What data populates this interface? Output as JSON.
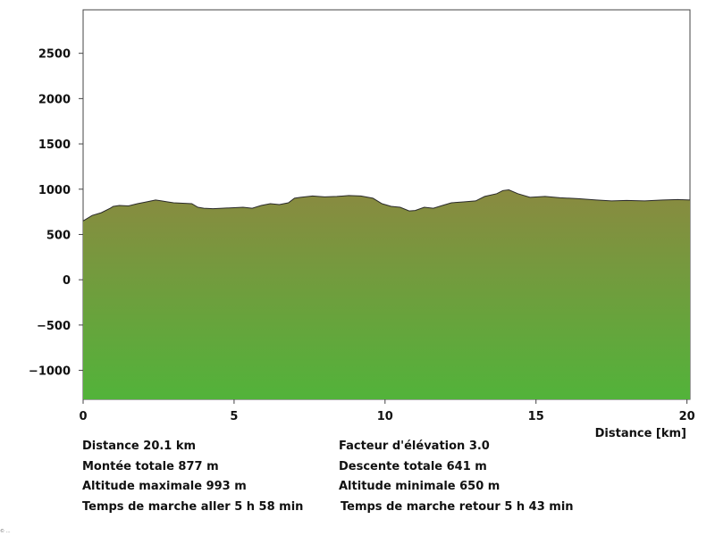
{
  "chart_data": {
    "type": "area",
    "title": "",
    "xlabel": "Distance [km]",
    "ylabel": "",
    "xlim": [
      0,
      20.1
    ],
    "ylim": [
      -1320,
      2980
    ],
    "x_ticks": [
      0,
      5,
      10,
      15,
      20
    ],
    "y_ticks": [
      -1000,
      -500,
      0,
      500,
      1000,
      1500,
      2000,
      2500
    ],
    "grid": false,
    "fill_top_color": "#8a8a40",
    "fill_bottom_color": "#52b33a",
    "line_color": "#2a2a2a",
    "x": [
      0,
      0.3,
      0.6,
      0.9,
      1.0,
      1.2,
      1.5,
      1.8,
      2.1,
      2.4,
      2.6,
      2.8,
      3.0,
      3.3,
      3.6,
      3.8,
      4.0,
      4.3,
      4.6,
      5.0,
      5.3,
      5.6,
      5.9,
      6.2,
      6.5,
      6.8,
      7.0,
      7.2,
      7.6,
      8.0,
      8.4,
      8.8,
      9.2,
      9.6,
      9.9,
      10.2,
      10.5,
      10.8,
      11.0,
      11.3,
      11.6,
      11.9,
      12.2,
      12.6,
      13.0,
      13.3,
      13.7,
      13.9,
      14.1,
      14.4,
      14.8,
      15.3,
      15.8,
      16.4,
      17.0,
      17.5,
      18.0,
      18.6,
      19.2,
      19.7,
      20.1
    ],
    "y": [
      650,
      710,
      740,
      790,
      810,
      820,
      815,
      840,
      860,
      880,
      870,
      860,
      850,
      845,
      840,
      800,
      790,
      785,
      790,
      795,
      800,
      790,
      820,
      840,
      830,
      850,
      900,
      910,
      925,
      915,
      920,
      930,
      925,
      900,
      840,
      810,
      800,
      760,
      765,
      800,
      790,
      820,
      850,
      860,
      870,
      920,
      950,
      985,
      993,
      950,
      910,
      920,
      905,
      895,
      880,
      870,
      875,
      870,
      880,
      885,
      880
    ]
  },
  "stats": {
    "distance": "Distance 20.1 km",
    "elevation_factor": "Facteur d'élévation 3.0",
    "total_ascent": "Montée totale  877 m",
    "total_descent": "Descente totale  641 m",
    "max_altitude": "Altitude maximale  993 m",
    "min_altitude": "Altitude minimale  650 m",
    "walk_time_out": "Temps de marche aller  5 h 58 min",
    "walk_time_return": "Temps de marche retour  5 h 43 min"
  },
  "footer_tiny": "© …"
}
